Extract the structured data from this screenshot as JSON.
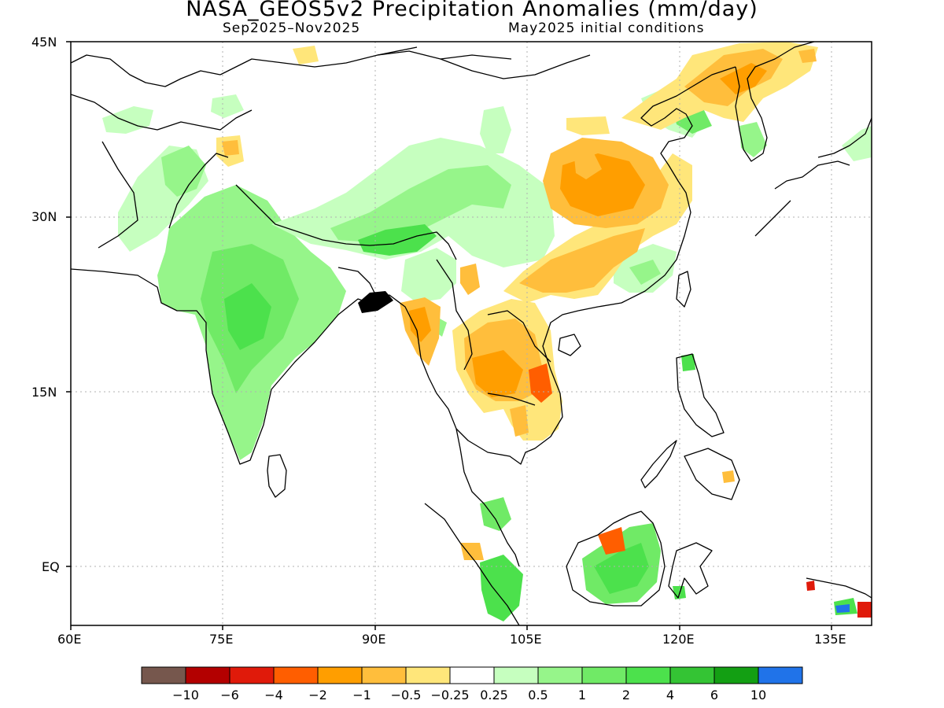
{
  "title": "NASA_GEOS5v2 Precipitation Anomalies (mm/day)",
  "period": "Sep2025–Nov2025",
  "init": "May2025 initial conditions",
  "lat_labels": [
    "45N",
    "30N",
    "15N",
    "EQ"
  ],
  "lon_labels": [
    "60E",
    "75E",
    "90E",
    "105E",
    "120E",
    "135E"
  ],
  "colorbar": {
    "colors": [
      "#76574d",
      "#b30000",
      "#e01a0a",
      "#ff5e00",
      "#ff9e00",
      "#ffbe3c",
      "#ffe67a",
      "#ffffff",
      "#c6ffbf",
      "#96f58a",
      "#70ea66",
      "#4ce14c",
      "#34c434",
      "#139f13",
      "#2073e9"
    ],
    "labels": [
      "−10",
      "−6",
      "−4",
      "−2",
      "−1",
      "−0.5",
      "−0.25",
      "0.25",
      "0.5",
      "1",
      "2",
      "4",
      "6",
      "10"
    ]
  },
  "gridline_color": "#b0b0b0"
}
